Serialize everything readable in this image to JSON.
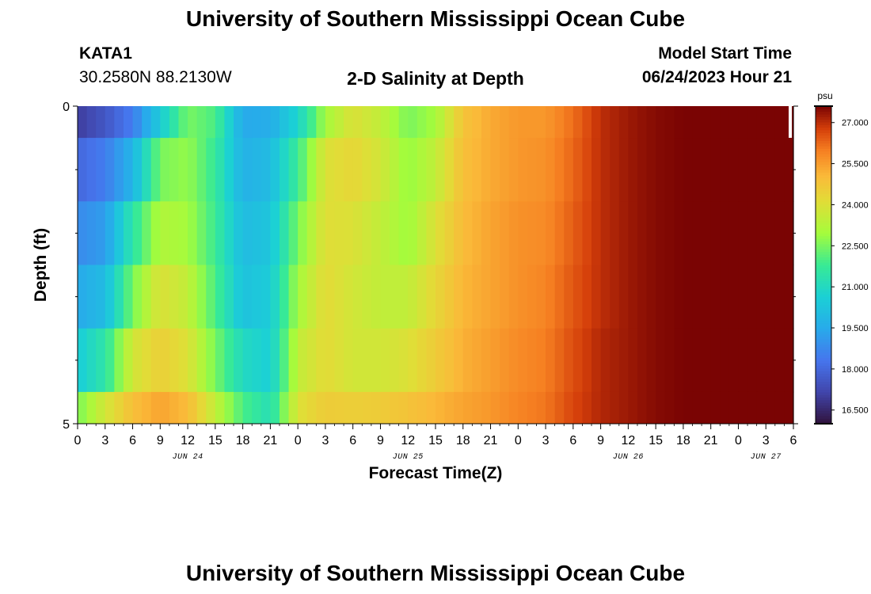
{
  "header": {
    "title": "University of Southern Mississippi Ocean Cube",
    "station_id": "KATA1",
    "station_coords": "30.2580N  88.2130W",
    "plot_title": "2-D Salinity at Depth",
    "model_start_label": "Model Start Time",
    "model_start_value": "06/24/2023 Hour 21"
  },
  "footer": {
    "title": "University of Southern Mississippi Ocean Cube"
  },
  "chart_data": {
    "type": "heatmap",
    "title": "2-D Salinity at Depth",
    "xlabel": "Forecast Time(Z)",
    "ylabel": "Depth (ft)",
    "x_hours": [
      0,
      3,
      6,
      9,
      12,
      15,
      18,
      21,
      24,
      27,
      30,
      33,
      36,
      39,
      42,
      45,
      48,
      51,
      54,
      57,
      60,
      63,
      66,
      69,
      72,
      75,
      78
    ],
    "x_tick_labels": [
      "0",
      "3",
      "6",
      "9",
      "12",
      "15",
      "18",
      "21",
      "0",
      "3",
      "6",
      "9",
      "12",
      "15",
      "18",
      "21",
      "0",
      "3",
      "6",
      "9",
      "12",
      "15",
      "18",
      "21",
      "0",
      "3",
      "6"
    ],
    "date_labels": [
      {
        "label": "JUN 24",
        "hour": 12
      },
      {
        "label": "JUN 25",
        "hour": 36
      },
      {
        "label": "JUN 26",
        "hour": 60
      },
      {
        "label": "JUN 27",
        "hour": 75
      }
    ],
    "ylim": [
      0,
      5
    ],
    "y_tick_labels": [
      "0",
      "5"
    ],
    "depth_layers": [
      "0–0.5 ft",
      "0.5–1.5 ft",
      "1.5–2.5 ft",
      "2.5–3.5 ft",
      "3.5–4.5 ft",
      "4.5–5 ft"
    ],
    "values": [
      [
        17.0,
        17.6,
        18.5,
        20.5,
        22.5,
        22.0,
        19.5,
        19.6,
        20.8,
        23.0,
        24.0,
        23.5,
        22.5,
        23.0,
        24.8,
        25.3,
        25.6,
        25.6,
        26.2,
        27.0,
        27.3,
        27.5,
        27.6,
        27.7,
        27.8,
        27.9,
        28.0
      ],
      [
        18.0,
        18.5,
        19.8,
        22.5,
        22.8,
        21.7,
        19.7,
        20.0,
        21.8,
        24.0,
        24.3,
        23.8,
        22.8,
        23.5,
        24.9,
        25.3,
        25.6,
        25.7,
        26.3,
        27.0,
        27.3,
        27.5,
        27.6,
        27.7,
        27.8,
        27.9,
        28.0
      ],
      [
        18.8,
        19.2,
        21.5,
        23.2,
        23.0,
        21.8,
        20.0,
        20.3,
        22.5,
        24.1,
        24.0,
        23.5,
        22.9,
        24.0,
        25.0,
        25.4,
        25.7,
        25.8,
        26.4,
        27.0,
        27.3,
        27.5,
        27.6,
        27.7,
        27.8,
        27.9,
        28.0
      ],
      [
        19.5,
        20.0,
        22.5,
        24.0,
        23.5,
        22.0,
        20.2,
        20.5,
        23.0,
        24.2,
        23.8,
        23.5,
        23.5,
        24.3,
        25.1,
        25.4,
        25.7,
        25.9,
        26.5,
        27.0,
        27.3,
        27.5,
        27.6,
        27.7,
        27.8,
        27.9,
        28.0
      ],
      [
        20.5,
        21.5,
        23.8,
        24.5,
        24.0,
        22.5,
        21.0,
        20.6,
        23.5,
        24.2,
        23.8,
        23.8,
        24.0,
        24.6,
        25.2,
        25.5,
        25.8,
        26.0,
        26.6,
        27.1,
        27.3,
        27.5,
        27.6,
        27.7,
        27.8,
        27.9,
        28.0
      ],
      [
        22.5,
        23.8,
        24.9,
        25.4,
        25.0,
        23.5,
        22.0,
        21.2,
        24.0,
        24.6,
        24.5,
        24.6,
        24.8,
        25.1,
        25.4,
        25.6,
        25.9,
        26.1,
        26.7,
        27.1,
        27.3,
        27.5,
        27.6,
        27.7,
        27.8,
        27.9,
        28.0
      ]
    ],
    "colorbar": {
      "unit": "psu",
      "ticks": [
        "27.000",
        "25.500",
        "24.000",
        "22.500",
        "21.000",
        "19.500",
        "18.000",
        "16.500"
      ],
      "tick_values": [
        27.0,
        25.5,
        24.0,
        22.5,
        21.0,
        19.5,
        18.0,
        16.5
      ],
      "vmin": 16.0,
      "vmax": 27.6,
      "colormap": "turbo"
    },
    "grid": false
  }
}
